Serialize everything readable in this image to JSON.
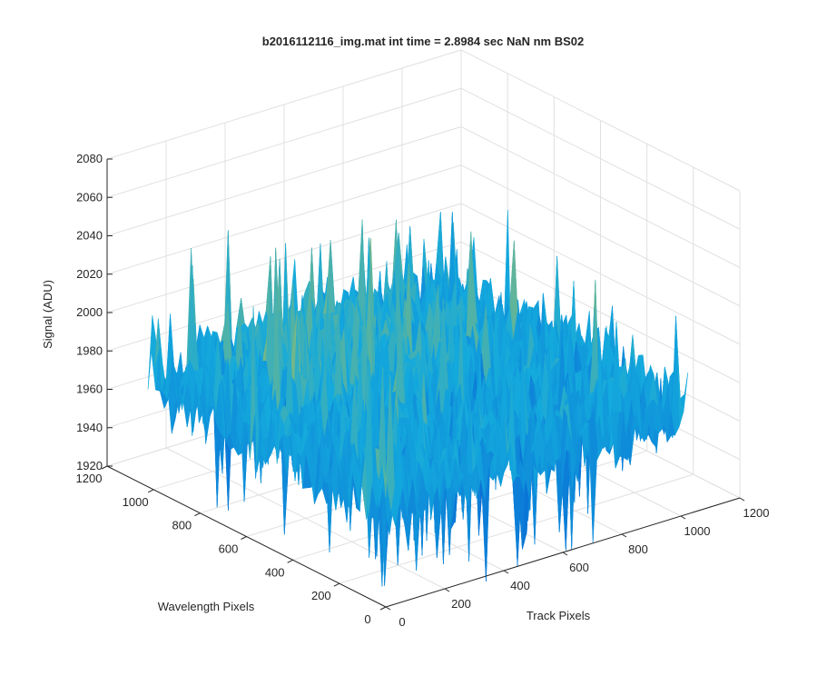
{
  "chart_data": {
    "type": "surface",
    "title": "b2016112116_img.mat int time = 2.8984 sec  NaN nm BS02",
    "xlabel": "Track Pixels",
    "ylabel": "Wavelength Pixels",
    "zlabel": "Signal (ADU)",
    "xlim": [
      0,
      1200
    ],
    "ylim": [
      0,
      1200
    ],
    "zlim": [
      1920,
      2080
    ],
    "x_ticks": [
      0,
      200,
      400,
      600,
      800,
      1000,
      1200
    ],
    "y_ticks": [
      0,
      200,
      400,
      600,
      800,
      1000,
      1200
    ],
    "z_ticks": [
      1920,
      1940,
      1960,
      1980,
      2000,
      2020,
      2040,
      2060,
      2080
    ],
    "data_extent": {
      "x": [
        0,
        1024
      ],
      "y": [
        0,
        1024
      ]
    },
    "surface_summary": {
      "mean_signal": 1975,
      "noise_range": [
        1930,
        2070
      ],
      "colormap": "parula",
      "grid": true
    }
  },
  "colors": {
    "axis": "#262626",
    "grid": "#e0e0e0",
    "low": "#0a6fd6",
    "mid": "#14aadd",
    "high": "#cfc335"
  }
}
